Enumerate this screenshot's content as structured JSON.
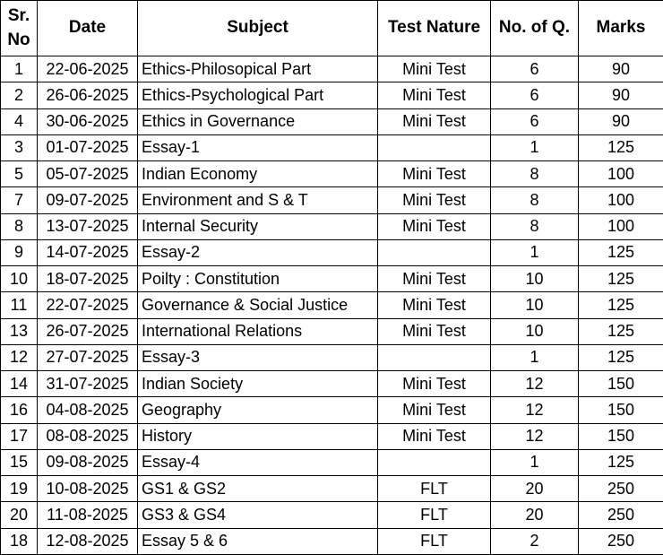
{
  "colors": {
    "border": "#000000",
    "text": "#000000",
    "background": "#ffffff"
  },
  "table": {
    "headers": [
      {
        "key": "sr",
        "label": "Sr. No"
      },
      {
        "key": "date",
        "label": "Date"
      },
      {
        "key": "subject",
        "label": "Subject"
      },
      {
        "key": "nature",
        "label": "Test Nature"
      },
      {
        "key": "q",
        "label": "No. of Q."
      },
      {
        "key": "marks",
        "label": "Marks"
      }
    ],
    "rows": [
      [
        "1",
        "22-06-2025",
        "Ethics-Philosopical Part",
        "Mini Test",
        "6",
        "90"
      ],
      [
        "2",
        "26-06-2025",
        "Ethics-Psychological Part",
        "Mini Test",
        "6",
        "90"
      ],
      [
        "4",
        "30-06-2025",
        "Ethics in Governance",
        "Mini Test",
        "6",
        "90"
      ],
      [
        "3",
        "01-07-2025",
        "Essay-1",
        "",
        "1",
        "125"
      ],
      [
        "5",
        "05-07-2025",
        "Indian Economy",
        "Mini Test",
        "8",
        "100"
      ],
      [
        "7",
        "09-07-2025",
        "Environment and S & T",
        "Mini Test",
        "8",
        "100"
      ],
      [
        "8",
        "13-07-2025",
        "Internal Security",
        "Mini Test",
        "8",
        "100"
      ],
      [
        "9",
        "14-07-2025",
        "Essay-2",
        "",
        "1",
        "125"
      ],
      [
        "10",
        "18-07-2025",
        "Poilty : Constitution",
        "Mini Test",
        "10",
        "125"
      ],
      [
        "11",
        "22-07-2025",
        "Governance & Social Justice",
        "Mini Test",
        "10",
        "125"
      ],
      [
        "13",
        "26-07-2025",
        "International Relations",
        "Mini Test",
        "10",
        "125"
      ],
      [
        "12",
        "27-07-2025",
        "Essay-3",
        "",
        "1",
        "125"
      ],
      [
        "14",
        "31-07-2025",
        "Indian Society",
        "Mini Test",
        "12",
        "150"
      ],
      [
        "16",
        "04-08-2025",
        "Geography",
        "Mini Test",
        "12",
        "150"
      ],
      [
        "17",
        "08-08-2025",
        "History",
        "Mini Test",
        "12",
        "150"
      ],
      [
        "15",
        "09-08-2025",
        "Essay-4",
        "",
        "1",
        "125"
      ],
      [
        "19",
        "10-08-2025",
        "GS1 & GS2",
        "FLT",
        "20",
        "250"
      ],
      [
        "20",
        "11-08-2025",
        "GS3 & GS4",
        "FLT",
        "20",
        "250"
      ],
      [
        "18",
        "12-08-2025",
        "Essay 5 & 6",
        "FLT",
        "2",
        "250"
      ]
    ]
  }
}
